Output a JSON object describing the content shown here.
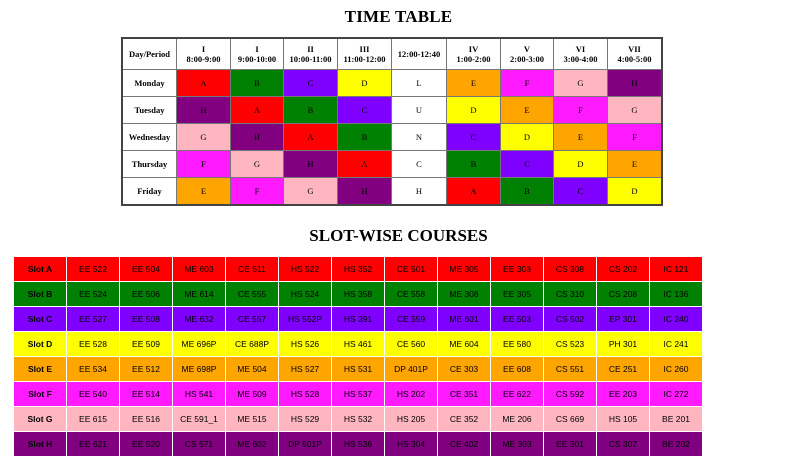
{
  "title": "TIME TABLE",
  "subtitle": "SLOT-WISE COURSES",
  "colors": {
    "A": "#ff0000",
    "B": "#008000",
    "C": "#7f00ff",
    "D": "#ffff00",
    "E": "#ffa500",
    "F": "#ff1aff",
    "G": "#ffb6c1",
    "H": "#800080"
  },
  "timetable": {
    "corner_label": "Day/Period",
    "headers": [
      {
        "period": "I",
        "time": "8:00-9:00"
      },
      {
        "period": "I",
        "time": "9:00-10:00"
      },
      {
        "period": "II",
        "time": "10:00-11:00"
      },
      {
        "period": "III",
        "time": "11:00-12:00"
      },
      {
        "period": "",
        "time": "12:00-12:40"
      },
      {
        "period": "IV",
        "time": "1:00-2:00"
      },
      {
        "period": "V",
        "time": "2:00-3:00"
      },
      {
        "period": "VI",
        "time": "3:00-4:00"
      },
      {
        "period": "VII",
        "time": "4:00-5:00"
      }
    ],
    "rows": [
      {
        "day": "Monday",
        "cells": [
          "A",
          "B",
          "C",
          "D",
          "L",
          "E",
          "F",
          "G",
          "H"
        ]
      },
      {
        "day": "Tuesday",
        "cells": [
          "H",
          "A",
          "B",
          "C",
          "U",
          "D",
          "E",
          "F",
          "G"
        ]
      },
      {
        "day": "Wednesday",
        "cells": [
          "G",
          "H",
          "A",
          "B",
          "N",
          "C",
          "D",
          "E",
          "F"
        ]
      },
      {
        "day": "Thursday",
        "cells": [
          "F",
          "G",
          "H",
          "A",
          "C",
          "B",
          "C",
          "D",
          "E"
        ]
      },
      {
        "day": "Friday",
        "cells": [
          "E",
          "F",
          "G",
          "H",
          "H",
          "A",
          "B",
          "C",
          "D"
        ]
      }
    ]
  },
  "slots": [
    {
      "slot": "A",
      "name": "Slot A",
      "courses": [
        "EE 522",
        "EE 504",
        "ME 603",
        "CE 511",
        "HS 522",
        "HS 352",
        "CE 501",
        "ME 305",
        "EE 303",
        "CS 308",
        "CS 202",
        "IC 121"
      ]
    },
    {
      "slot": "B",
      "name": "Slot B",
      "courses": [
        "EE 524",
        "EE 506",
        "ME 614",
        "CE 555",
        "HS 524",
        "HS 358",
        "CE 558",
        "ME 308",
        "EE 305",
        "CS 310",
        "CS 208",
        "IC 136"
      ]
    },
    {
      "slot": "C",
      "name": "Slot C",
      "courses": [
        "EE 527",
        "EE 508",
        "ME 632",
        "CE 557",
        "HS 552P",
        "HS 391",
        "CE 559",
        "ME 601",
        "EE 503",
        "CS 502",
        "EP 301",
        "IC 240"
      ]
    },
    {
      "slot": "D",
      "name": "Slot D",
      "courses": [
        "EE 528",
        "EE 509",
        "ME 696P",
        "CE 688P",
        "HS 526",
        "HS 461",
        "CE 560",
        "ME 604",
        "EE 580",
        "CS 523",
        "PH 301",
        "IC 241"
      ]
    },
    {
      "slot": "E",
      "name": "Slot E",
      "courses": [
        "EE 534",
        "EE 512",
        "ME 698P",
        "ME 504",
        "HS 527",
        "HS 531",
        "DP 401P",
        "CE 303",
        "EE 608",
        "CS 551",
        "CE 251",
        "IC 260"
      ]
    },
    {
      "slot": "F",
      "name": "Slot F",
      "courses": [
        "EE 540",
        "EE 514",
        "HS 541",
        "ME 509",
        "HS 528",
        "HS 537",
        "HS 202",
        "CE 351",
        "EE 622",
        "CS 592",
        "EE 203",
        "IC 272"
      ]
    },
    {
      "slot": "G",
      "name": "Slot G",
      "courses": [
        "EE 615",
        "EE 516",
        "CE 591_1",
        "ME 515",
        "HS 529",
        "HS 532",
        "HS 205",
        "CE 352",
        "ME 206",
        "CS 669",
        "HS 105",
        "BE 201"
      ]
    },
    {
      "slot": "H",
      "name": "Slot H",
      "courses": [
        "EE 621",
        "EE 520",
        "CS 571",
        "ME 602",
        "DP 501P",
        "HS 536",
        "HS 304",
        "CE 402",
        "ME 303",
        "EE 301",
        "CS 307",
        "BE 202"
      ]
    }
  ]
}
